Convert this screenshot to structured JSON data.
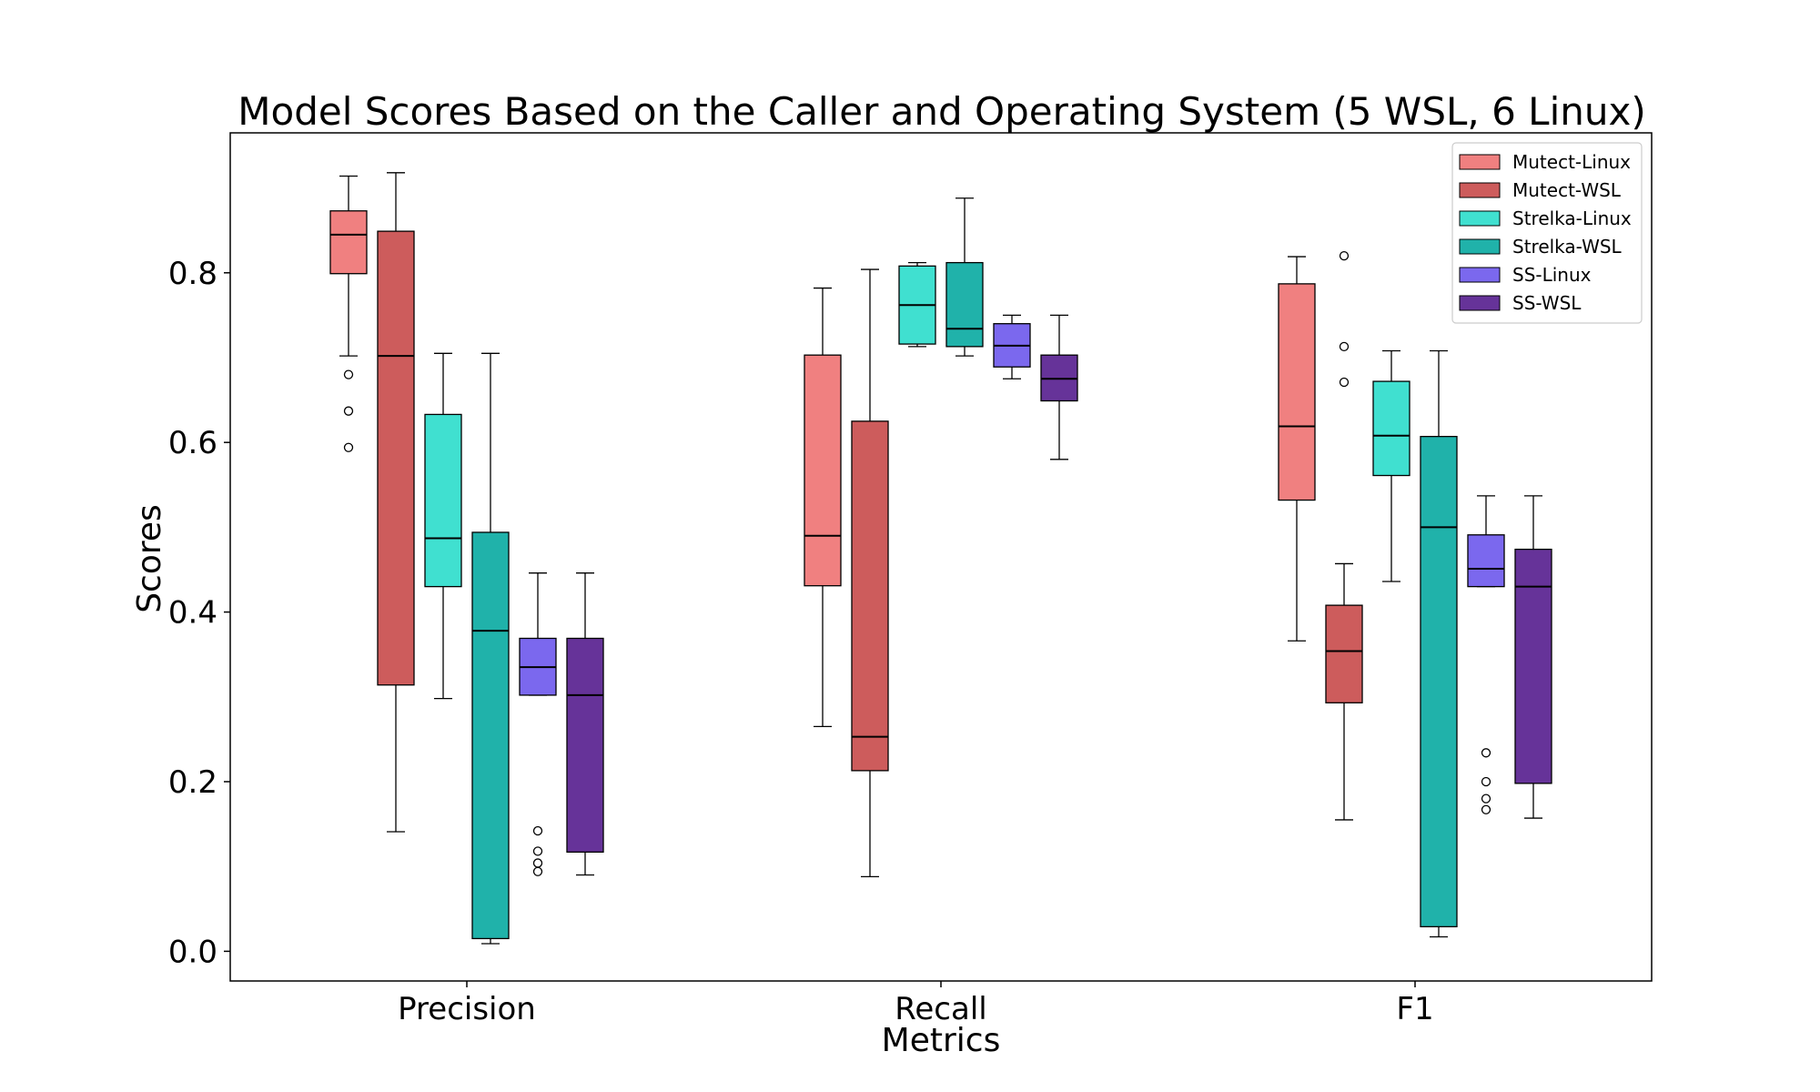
{
  "chart_data": {
    "type": "box",
    "title": "Model Scores Based on the Caller and Operating System (5 WSL, 6 Linux)",
    "xlabel": "Metrics",
    "ylabel": "Scores",
    "ylim": [
      -0.035,
      0.965
    ],
    "yticks": [
      0.0,
      0.2,
      0.4,
      0.6,
      0.8
    ],
    "ytick_labels": [
      "0.0",
      "0.2",
      "0.4",
      "0.6",
      "0.8"
    ],
    "categories": [
      "Precision",
      "Recall",
      "F1"
    ],
    "grid": false,
    "legend_position": "top-right",
    "series": [
      {
        "name": "Mutect-Linux",
        "color": "#F08080",
        "boxes": [
          {
            "whisker_low": 0.702,
            "q1": 0.799,
            "median": 0.845,
            "q3": 0.873,
            "whisker_high": 0.914,
            "outliers": [
              0.68,
              0.637,
              0.594
            ]
          },
          {
            "whisker_low": 0.265,
            "q1": 0.431,
            "median": 0.49,
            "q3": 0.703,
            "whisker_high": 0.782,
            "outliers": []
          },
          {
            "whisker_low": 0.366,
            "q1": 0.532,
            "median": 0.619,
            "q3": 0.787,
            "whisker_high": 0.819,
            "outliers": []
          }
        ]
      },
      {
        "name": "Mutect-WSL",
        "color": "#CD5C5C",
        "boxes": [
          {
            "whisker_low": 0.141,
            "q1": 0.314,
            "median": 0.702,
            "q3": 0.849,
            "whisker_high": 0.918,
            "outliers": []
          },
          {
            "whisker_low": 0.088,
            "q1": 0.213,
            "median": 0.253,
            "q3": 0.625,
            "whisker_high": 0.804,
            "outliers": []
          },
          {
            "whisker_low": 0.155,
            "q1": 0.293,
            "median": 0.354,
            "q3": 0.408,
            "whisker_high": 0.457,
            "outliers": [
              0.82,
              0.713,
              0.671
            ]
          }
        ]
      },
      {
        "name": "Strelka-Linux",
        "color": "#40E0D0",
        "boxes": [
          {
            "whisker_low": 0.298,
            "q1": 0.43,
            "median": 0.487,
            "q3": 0.633,
            "whisker_high": 0.705,
            "outliers": []
          },
          {
            "whisker_low": 0.713,
            "q1": 0.716,
            "median": 0.762,
            "q3": 0.808,
            "whisker_high": 0.812,
            "outliers": []
          },
          {
            "whisker_low": 0.436,
            "q1": 0.561,
            "median": 0.608,
            "q3": 0.672,
            "whisker_high": 0.708,
            "outliers": []
          }
        ]
      },
      {
        "name": "Strelka-WSL",
        "color": "#20B2AA",
        "boxes": [
          {
            "whisker_low": 0.009,
            "q1": 0.015,
            "median": 0.378,
            "q3": 0.494,
            "whisker_high": 0.705,
            "outliers": []
          },
          {
            "whisker_low": 0.702,
            "q1": 0.713,
            "median": 0.734,
            "q3": 0.812,
            "whisker_high": 0.888,
            "outliers": []
          },
          {
            "whisker_low": 0.017,
            "q1": 0.029,
            "median": 0.5,
            "q3": 0.607,
            "whisker_high": 0.708,
            "outliers": []
          }
        ]
      },
      {
        "name": "SS-Linux",
        "color": "#7B68EE",
        "boxes": [
          {
            "whisker_low": 0.302,
            "q1": 0.302,
            "median": 0.335,
            "q3": 0.369,
            "whisker_high": 0.446,
            "outliers": [
              0.142,
              0.118,
              0.104,
              0.094
            ]
          },
          {
            "whisker_low": 0.675,
            "q1": 0.689,
            "median": 0.714,
            "q3": 0.74,
            "whisker_high": 0.75,
            "outliers": []
          },
          {
            "whisker_low": 0.43,
            "q1": 0.43,
            "median": 0.451,
            "q3": 0.491,
            "whisker_high": 0.537,
            "outliers": [
              0.234,
              0.2,
              0.18,
              0.167
            ]
          }
        ]
      },
      {
        "name": "SS-WSL",
        "color": "#663399",
        "boxes": [
          {
            "whisker_low": 0.09,
            "q1": 0.117,
            "median": 0.302,
            "q3": 0.369,
            "whisker_high": 0.446,
            "outliers": []
          },
          {
            "whisker_low": 0.58,
            "q1": 0.649,
            "median": 0.675,
            "q3": 0.703,
            "whisker_high": 0.75,
            "outliers": []
          },
          {
            "whisker_low": 0.157,
            "q1": 0.198,
            "median": 0.43,
            "q3": 0.474,
            "whisker_high": 0.537,
            "outliers": []
          }
        ]
      }
    ]
  }
}
